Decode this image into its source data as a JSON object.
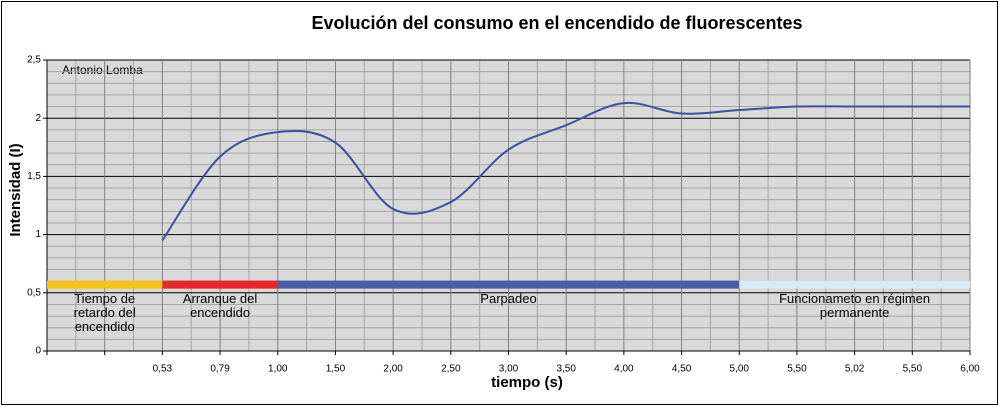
{
  "chart_data": {
    "type": "line",
    "title": "Evolución del consumo en el encendido de fluorescentes",
    "xlabel": "tiempo (s)",
    "ylabel": "Intensidad (I)",
    "annotation": "Antonio Lomba",
    "categories": [
      null,
      null,
      "0,53",
      "0,79",
      "1,00",
      "1,50",
      "2,00",
      "2,50",
      "3,00",
      "3,50",
      "4,00",
      "4,50",
      "5,00",
      "5,50",
      "5,02",
      "5,50",
      "6,00"
    ],
    "ylim": [
      0,
      2.5
    ],
    "yticks": [
      0,
      {
        "value": 0.5,
        "label": "0,5"
      },
      1,
      {
        "value": 1.5,
        "label": "1,5"
      },
      2,
      {
        "value": 2.5,
        "label": "2,5"
      }
    ],
    "grid": true,
    "series": [
      {
        "name": "Intensidad",
        "color": "#3f4fa0",
        "values": [
          null,
          null,
          0.95,
          1.67,
          1.88,
          1.79,
          1.22,
          1.28,
          1.73,
          1.94,
          2.13,
          2.04,
          2.07,
          2.1,
          2.1,
          2.1,
          2.1
        ]
      },
      {
        "name": "Tiempo de retardo del encendido",
        "color": "#f5c316",
        "values": [
          0.57,
          0.57,
          0.57,
          null,
          null,
          null,
          null,
          null,
          null,
          null,
          null,
          null,
          null,
          null,
          null,
          null,
          null
        ]
      },
      {
        "name": "Arranque del encendido",
        "color": "#e8262b",
        "values": [
          null,
          null,
          0.57,
          0.57,
          0.57,
          null,
          null,
          null,
          null,
          null,
          null,
          null,
          null,
          null,
          null,
          null,
          null
        ]
      },
      {
        "name": "Parpadeo",
        "color": "#4a5ea8",
        "values": [
          null,
          null,
          null,
          null,
          0.57,
          0.57,
          0.57,
          0.57,
          0.57,
          0.57,
          0.57,
          0.57,
          0.57,
          null,
          null,
          null,
          null
        ]
      },
      {
        "name": "Funcionameto en régimen permanente",
        "color": "#d6ebf3",
        "values": [
          null,
          null,
          null,
          null,
          null,
          null,
          null,
          null,
          null,
          null,
          null,
          null,
          0.57,
          0.57,
          0.57,
          0.57,
          0.57
        ]
      }
    ]
  }
}
